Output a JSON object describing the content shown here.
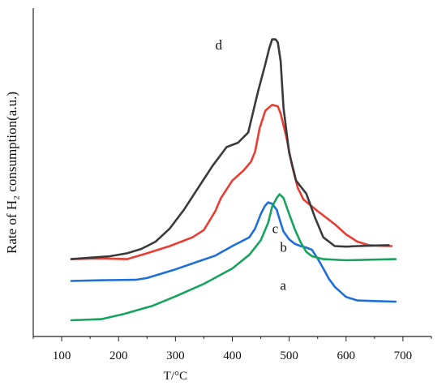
{
  "chart_data": {
    "type": "line",
    "xlabel": "T/°C",
    "ylabel": "Rate of H₂ consumption(a.u.)",
    "xlim": [
      50,
      750
    ],
    "ylim": [
      0,
      100
    ],
    "xticks": [
      100,
      200,
      300,
      400,
      500,
      600,
      700
    ],
    "y_tick_labels": false,
    "grid": false,
    "legend": "none",
    "series": [
      {
        "name": "a",
        "color": "#1f6fd8",
        "x": [
          117,
          180,
          230,
          250,
          300,
          340,
          370,
          400,
          430,
          440,
          450,
          457,
          463,
          470,
          478,
          485,
          490,
          500,
          510,
          520,
          530,
          540,
          550,
          560,
          570,
          580,
          600,
          620,
          650,
          687
        ],
        "y": [
          13.5,
          13.8,
          13.9,
          14.5,
          17.5,
          20.2,
          22.2,
          25.5,
          28.5,
          31.5,
          36.5,
          39.2,
          40.5,
          40.0,
          38.0,
          33.5,
          30.5,
          27.8,
          26.2,
          25.5,
          25.0,
          24.2,
          21.2,
          17.8,
          14.2,
          11.5,
          8.0,
          6.8,
          6.6,
          6.4
        ]
      },
      {
        "name": "b",
        "color": "#16a35e",
        "x": [
          117,
          170,
          210,
          260,
          300,
          350,
          400,
          430,
          450,
          463,
          470,
          478,
          483,
          490,
          500,
          510,
          520,
          530,
          540,
          560,
          600,
          640,
          687
        ],
        "y": [
          0,
          0.4,
          2.2,
          5.0,
          8.2,
          12.5,
          17.8,
          22.5,
          27.5,
          33.5,
          39.0,
          42.0,
          43.3,
          42.0,
          36.5,
          31.2,
          26.8,
          23.5,
          22.0,
          21.0,
          20.6,
          20.8,
          21.0
        ]
      },
      {
        "name": "c",
        "color": "#e83d33",
        "x": [
          117,
          150,
          180,
          215,
          250,
          290,
          330,
          350,
          370,
          380,
          400,
          420,
          433,
          440,
          448,
          458,
          470,
          480,
          485,
          495,
          505,
          515,
          525,
          550,
          580,
          600,
          620,
          640,
          660,
          680
        ],
        "y": [
          21.0,
          21.2,
          21.2,
          21.0,
          23.0,
          25.5,
          28.5,
          31.0,
          37.5,
          42.0,
          48.0,
          51.5,
          54.5,
          58.0,
          66.0,
          72.0,
          74.0,
          73.5,
          71.0,
          63.0,
          53.0,
          45.5,
          41.5,
          37.5,
          33.0,
          29.5,
          27.0,
          25.8,
          25.6,
          25.5
        ]
      },
      {
        "name": "d",
        "color": "#3a3a3a",
        "x": [
          117,
          150,
          185,
          215,
          240,
          265,
          290,
          315,
          340,
          365,
          390,
          410,
          428,
          445,
          458,
          465,
          470,
          476,
          480,
          485,
          490,
          500,
          512,
          520,
          530,
          545,
          560,
          580,
          600,
          620,
          640,
          660,
          675
        ],
        "y": [
          21.0,
          21.5,
          22.0,
          23.0,
          24.5,
          27.0,
          31.5,
          38.0,
          45.5,
          53.0,
          59.5,
          61.0,
          64.5,
          78.5,
          88.0,
          93.5,
          96.5,
          96.5,
          95.5,
          89.0,
          73.0,
          57.5,
          48.0,
          46.0,
          43.5,
          35.5,
          28.5,
          25.5,
          25.3,
          25.5,
          25.6,
          25.7,
          25.8
        ]
      }
    ]
  }
}
